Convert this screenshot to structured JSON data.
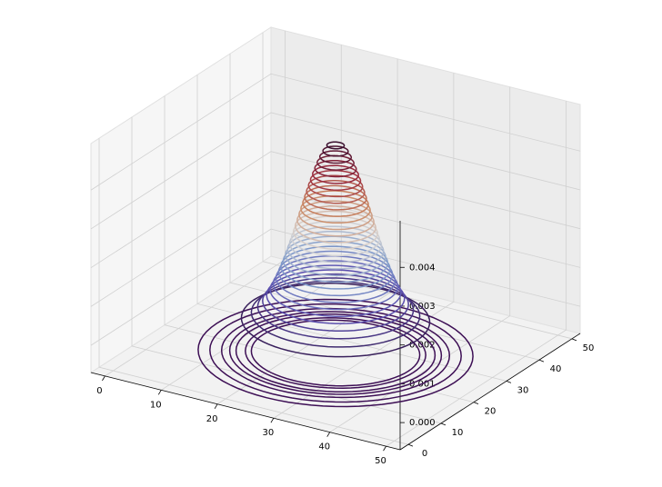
{
  "chart_data": {
    "type": "contour3d",
    "xlim": [
      -2.5,
      52.5
    ],
    "xticks": [
      0,
      10,
      20,
      30,
      40,
      50
    ],
    "ylim": [
      -2.5,
      52.5
    ],
    "yticks": [
      0,
      10,
      20,
      30,
      40,
      50
    ],
    "zlim": [
      -0.0007,
      0.0052
    ],
    "zticks": [
      {
        "value": 0,
        "label": "0.000"
      },
      {
        "value": 0.001,
        "label": "0.001"
      },
      {
        "value": 0.002,
        "label": "0.002"
      },
      {
        "value": 0.003,
        "label": "0.003"
      },
      {
        "value": 0.004,
        "label": "0.004"
      }
    ],
    "center": [
      25,
      25
    ],
    "levels": [
      0.00015,
      0.0003,
      0.00045,
      0.0006,
      0.00075,
      0.0009,
      0.00105,
      0.0012,
      0.00135,
      0.0015,
      0.00165,
      0.0018,
      0.00195,
      0.0021,
      0.00225,
      0.0024,
      0.00255,
      0.0027,
      0.00285,
      0.003,
      0.00315,
      0.0033,
      0.00345,
      0.0036,
      0.00375,
      0.0039,
      0.00405,
      0.0042,
      0.00435,
      0.0045,
      0.00465
    ],
    "floor_levels": [
      3e-06,
      1e-05,
      3e-05,
      6e-05,
      0.0001,
      0.0002,
      0.0003
    ],
    "colormap": [
      "#2f1447",
      "#5b4fb0",
      "#7f9ccb",
      "#d9d6d4",
      "#c9845e",
      "#9a2a3e",
      "#3a0f2e"
    ],
    "floor_color": "#3d0f55",
    "grid": true
  }
}
